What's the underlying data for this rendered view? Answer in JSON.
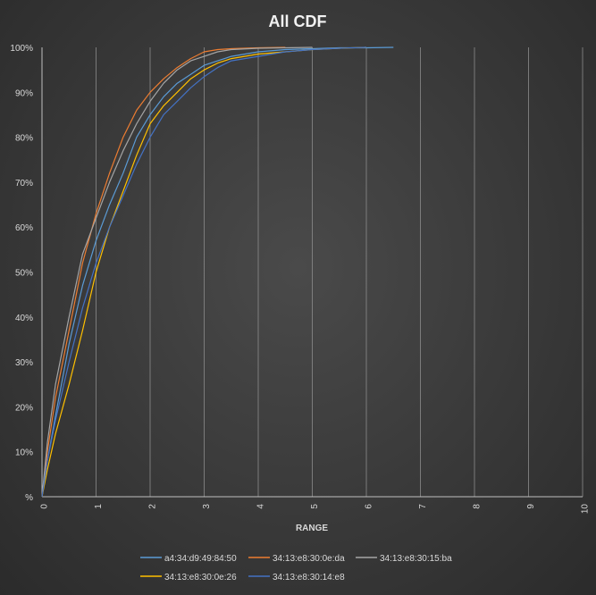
{
  "chart_data": {
    "type": "line",
    "title": "All CDF",
    "xlabel": "RANGE",
    "ylabel": "",
    "xlim": [
      0,
      10
    ],
    "ylim": [
      0,
      1
    ],
    "x_ticks": [
      "0",
      "1",
      "2",
      "3",
      "4",
      "5",
      "6",
      "7",
      "8",
      "9",
      "10"
    ],
    "y_ticks": [
      "%",
      "10%",
      "20%",
      "30%",
      "40%",
      "50%",
      "60%",
      "70%",
      "80%",
      "90%",
      "100%"
    ],
    "grid": "vertical",
    "legend_position": "bottom",
    "series": [
      {
        "name": "a4:34:d9:49:84:50",
        "color": "#5b9bd5",
        "x": [
          0,
          0.1,
          0.25,
          0.5,
          0.75,
          1.0,
          1.25,
          1.5,
          1.75,
          2.0,
          2.25,
          2.5,
          2.75,
          3.0,
          3.25,
          3.5,
          4.0,
          4.5,
          5.0,
          5.5,
          6.0,
          6.5
        ],
        "y": [
          0,
          0.08,
          0.18,
          0.34,
          0.47,
          0.57,
          0.65,
          0.72,
          0.8,
          0.85,
          0.89,
          0.92,
          0.94,
          0.96,
          0.97,
          0.98,
          0.99,
          0.995,
          0.997,
          0.999,
          0.999,
          1.0
        ]
      },
      {
        "name": "34:13:e8:30:0e:da",
        "color": "#ed7d31",
        "x": [
          0,
          0.1,
          0.25,
          0.5,
          0.75,
          1.0,
          1.25,
          1.5,
          1.75,
          2.0,
          2.25,
          2.5,
          2.75,
          3.0,
          3.25,
          3.5,
          4.0,
          4.5
        ],
        "y": [
          0,
          0.1,
          0.22,
          0.37,
          0.52,
          0.63,
          0.72,
          0.8,
          0.86,
          0.9,
          0.93,
          0.955,
          0.975,
          0.99,
          0.995,
          0.997,
          0.999,
          1.0
        ]
      },
      {
        "name": "34:13:e8:30:15:ba",
        "color": "#a5a5a5",
        "x": [
          0,
          0.1,
          0.25,
          0.5,
          0.75,
          1.0,
          1.25,
          1.5,
          1.75,
          2.0,
          2.25,
          2.5,
          2.75,
          3.0,
          3.25,
          3.5,
          4.0,
          4.5,
          5.0
        ],
        "y": [
          0,
          0.12,
          0.25,
          0.4,
          0.54,
          0.62,
          0.7,
          0.77,
          0.83,
          0.88,
          0.92,
          0.95,
          0.97,
          0.98,
          0.99,
          0.995,
          0.998,
          0.999,
          1.0
        ]
      },
      {
        "name": "34:13:e8:30:0e:26",
        "color": "#ffc000",
        "x": [
          0,
          0.1,
          0.25,
          0.5,
          0.75,
          1.0,
          1.25,
          1.5,
          1.75,
          2.0,
          2.25,
          2.5,
          2.75,
          3.0,
          3.25,
          3.5,
          4.0,
          4.5,
          5.0,
          5.5,
          6.0
        ],
        "y": [
          0,
          0.06,
          0.14,
          0.25,
          0.37,
          0.5,
          0.6,
          0.68,
          0.76,
          0.83,
          0.87,
          0.9,
          0.93,
          0.95,
          0.965,
          0.975,
          0.985,
          0.99,
          0.995,
          0.998,
          1.0
        ]
      },
      {
        "name": "34:13:e8:30:14:e8",
        "color": "#4472c4",
        "x": [
          0,
          0.1,
          0.25,
          0.5,
          0.75,
          1.0,
          1.25,
          1.5,
          1.75,
          2.0,
          2.25,
          2.5,
          2.75,
          3.0,
          3.25,
          3.5,
          4.0,
          4.5,
          5.0,
          5.5,
          6.0
        ],
        "y": [
          0,
          0.08,
          0.17,
          0.3,
          0.42,
          0.52,
          0.6,
          0.67,
          0.74,
          0.8,
          0.85,
          0.88,
          0.91,
          0.935,
          0.955,
          0.97,
          0.98,
          0.99,
          0.995,
          0.998,
          1.0
        ]
      }
    ]
  }
}
